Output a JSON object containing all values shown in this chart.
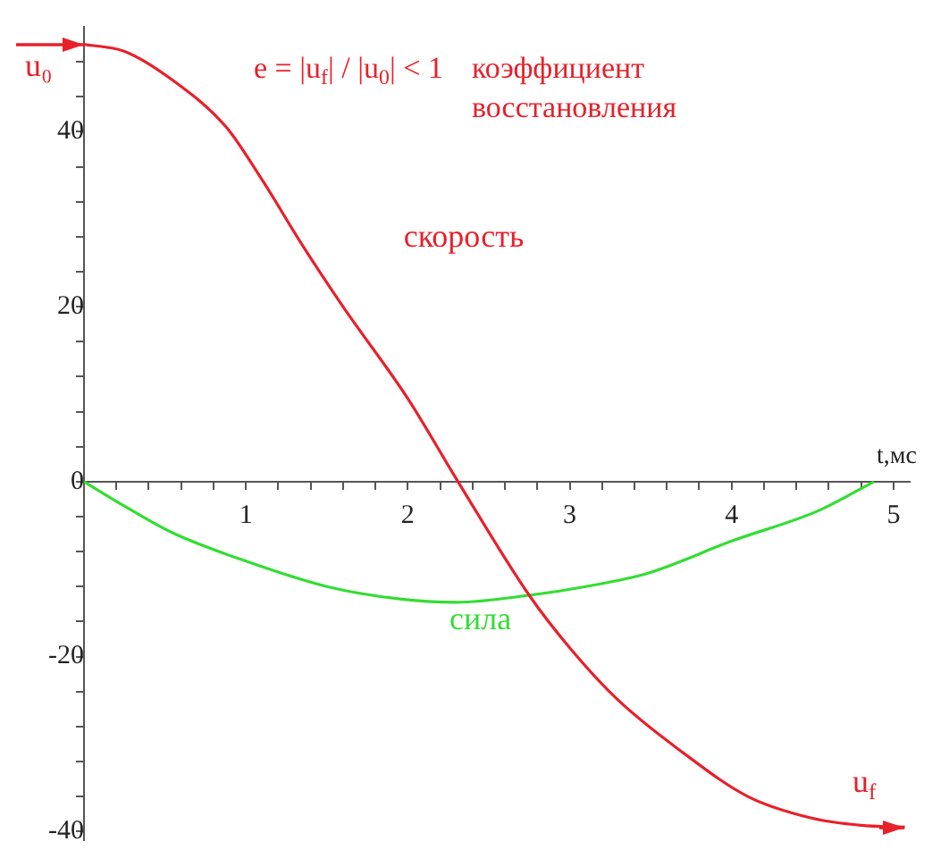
{
  "chart_data": {
    "type": "line",
    "xlabel": "t,мс",
    "xlim": [
      0,
      5.1
    ],
    "ylim": [
      -41,
      52
    ],
    "xticks": [
      {
        "value": 0.2,
        "label": null
      },
      {
        "value": 0.4,
        "label": null
      },
      {
        "value": 0.6,
        "label": null
      },
      {
        "value": 0.8,
        "label": null
      },
      1,
      {
        "value": 1.2,
        "label": null
      },
      {
        "value": 1.4,
        "label": null
      },
      {
        "value": 1.6,
        "label": null
      },
      {
        "value": 1.8,
        "label": null
      },
      2,
      {
        "value": 2.2,
        "label": null
      },
      {
        "value": 2.4,
        "label": null
      },
      {
        "value": 2.6,
        "label": null
      },
      {
        "value": 2.8,
        "label": null
      },
      3,
      {
        "value": 3.2,
        "label": null
      },
      {
        "value": 3.4,
        "label": null
      },
      {
        "value": 3.6,
        "label": null
      },
      {
        "value": 3.8,
        "label": null
      },
      4,
      {
        "value": 4.2,
        "label": null
      },
      {
        "value": 4.4,
        "label": null
      },
      {
        "value": 4.6,
        "label": null
      },
      {
        "value": 4.8,
        "label": null
      },
      5
    ],
    "yticks": [
      -40,
      {
        "value": -36,
        "label": null
      },
      {
        "value": -32,
        "label": null
      },
      {
        "value": -28,
        "label": null
      },
      {
        "value": -24,
        "label": null
      },
      -20,
      {
        "value": -16,
        "label": null
      },
      {
        "value": -12,
        "label": null
      },
      {
        "value": -8,
        "label": null
      },
      {
        "value": -4,
        "label": null
      },
      0,
      {
        "value": 4,
        "label": null
      },
      {
        "value": 8,
        "label": null
      },
      {
        "value": 12,
        "label": null
      },
      {
        "value": 16,
        "label": null
      },
      20,
      {
        "value": 24,
        "label": null
      },
      {
        "value": 28,
        "label": null
      },
      {
        "value": 32,
        "label": null
      },
      {
        "value": 36,
        "label": null
      },
      40,
      {
        "value": 44,
        "label": null
      },
      {
        "value": 48,
        "label": null
      }
    ],
    "grid": false,
    "legend": false,
    "marker": "none",
    "line_style": "solid",
    "series": [
      {
        "color": "#e8202a",
        "x": [
          0,
          0.25,
          0.54,
          0.88,
          1.1,
          1.35,
          1.6,
          2.0,
          2.31,
          2.75,
          3.0,
          3.3,
          3.7,
          4.1,
          4.5,
          4.8,
          5.07
        ],
        "values": [
          50,
          49.2,
          46,
          40.5,
          34.5,
          27,
          20,
          9.5,
          0,
          -13,
          -19,
          -25,
          -31,
          -36,
          -38.5,
          -39.3,
          -39.5
        ]
      },
      {
        "color": "#33dd33",
        "x": [
          0,
          0.25,
          0.54,
          1.0,
          1.5,
          1.94,
          2.3,
          2.75,
          3.1,
          3.48,
          4.0,
          4.54,
          4.88
        ],
        "values": [
          0,
          -2.8,
          -5.8,
          -9.1,
          -12,
          -13.4,
          -13.8,
          -13,
          -12,
          -10.5,
          -6.8,
          -3.3,
          0
        ]
      }
    ],
    "annotations": [
      "e = |u$_{f}$| / |u$_{0}$| < 1",
      "коэффициент восстановления",
      "u₀",
      "скорость",
      "сила",
      "u$_{f}$"
    ]
  }
}
